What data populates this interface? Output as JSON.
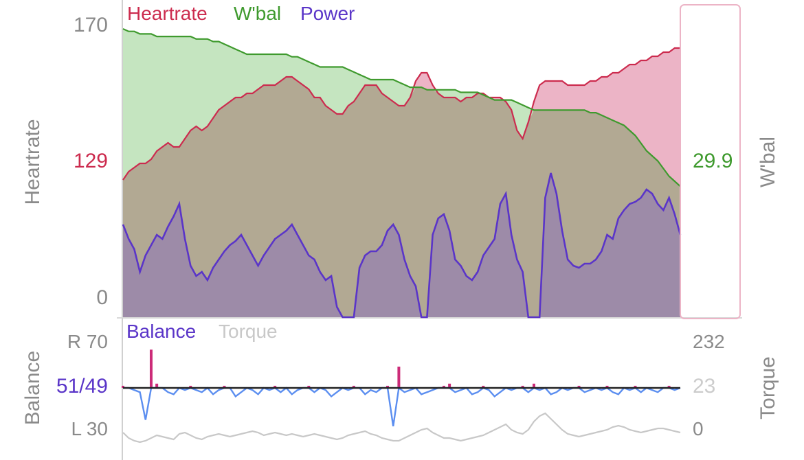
{
  "colors": {
    "heartrate": "#cc2b4e",
    "wbal": "#3f9a2e",
    "power": "#5a35c8",
    "balance_right": "#cc2b78",
    "balance_left": "#5b8ef0",
    "torque": "#c8c8c8",
    "axis_text": "#8a8a8a",
    "wbal_fill": "#c2e4bd",
    "hr_fill": "#ecb4c6",
    "overlap_fill": "#b2a993",
    "power_fill": "#9d8ba8"
  },
  "chart_data": [
    {
      "type": "area",
      "legend": [
        "Heartrate",
        "W'bal",
        "Power"
      ],
      "left_axis": {
        "label": "Heartrate",
        "ticks": [
          "170",
          "129",
          "0"
        ],
        "highlight": "129"
      },
      "right_axis": {
        "label": "W'bal",
        "value": "29.9"
      },
      "x_samples": 100,
      "series": [
        {
          "name": "Heartrate",
          "values": [
            140,
            142,
            143,
            144,
            144,
            145,
            147,
            148,
            149,
            148,
            148,
            150,
            152,
            153,
            152,
            153,
            155,
            157,
            158,
            159,
            160,
            160,
            161,
            161,
            162,
            163,
            163,
            163,
            164,
            165,
            165,
            164,
            163,
            162,
            160,
            160,
            158,
            157,
            156,
            156,
            158,
            159,
            161,
            163,
            163,
            163,
            161,
            160,
            159,
            158,
            158,
            160,
            164,
            166,
            166,
            163,
            161,
            160,
            160,
            160,
            159,
            160,
            160,
            161,
            161,
            160,
            160,
            160,
            159,
            157,
            152,
            150,
            154,
            159,
            163,
            164,
            164,
            164,
            164,
            163,
            163,
            163,
            163,
            164,
            164,
            165,
            165,
            166,
            166,
            167,
            168,
            168,
            169,
            169,
            170,
            170,
            171,
            171,
            172,
            172
          ]
        },
        {
          "name": "W'bal",
          "values": [
            100,
            99,
            99,
            98,
            98,
            98,
            97,
            97,
            97,
            97,
            97,
            97,
            97,
            96,
            96,
            96,
            95,
            95,
            94,
            93,
            92,
            91,
            90,
            90,
            90,
            90,
            90,
            90,
            90,
            90,
            89,
            89,
            88,
            87,
            86,
            85,
            85,
            85,
            85,
            85,
            84,
            83,
            82,
            81,
            80,
            80,
            80,
            80,
            80,
            79,
            78,
            77,
            77,
            77,
            76,
            76,
            76,
            76,
            76,
            76,
            75,
            75,
            75,
            75,
            74,
            73,
            72,
            72,
            72,
            72,
            71,
            70,
            69,
            68,
            68,
            68,
            68,
            68,
            68,
            68,
            68,
            68,
            68,
            67,
            67,
            66,
            65,
            64,
            63,
            62,
            60,
            58,
            55,
            52,
            50,
            48,
            45,
            42,
            40,
            38
          ]
        },
        {
          "name": "Power",
          "values": [
            45,
            38,
            33,
            22,
            30,
            35,
            40,
            38,
            44,
            49,
            55,
            38,
            25,
            20,
            22,
            18,
            24,
            28,
            32,
            35,
            37,
            40,
            35,
            30,
            25,
            30,
            34,
            38,
            40,
            42,
            45,
            40,
            35,
            30,
            28,
            22,
            18,
            20,
            5,
            0,
            0,
            0,
            24,
            30,
            32,
            32,
            35,
            42,
            45,
            40,
            28,
            20,
            15,
            0,
            0,
            40,
            48,
            50,
            42,
            28,
            25,
            20,
            18,
            22,
            30,
            34,
            38,
            55,
            60,
            40,
            28,
            22,
            0,
            0,
            0,
            58,
            70,
            60,
            42,
            28,
            25,
            24,
            26,
            26,
            28,
            32,
            40,
            38,
            48,
            52,
            55,
            56,
            58,
            62,
            60,
            55,
            52,
            58,
            50,
            40
          ]
        }
      ]
    },
    {
      "type": "line",
      "legend": [
        "Balance",
        "Torque"
      ],
      "left_axis": {
        "label": "Balance",
        "ticks": [
          "R 70",
          "51/49",
          "L 30"
        ],
        "highlight": "51/49"
      },
      "right_axis": {
        "label": "Torque",
        "ticks": [
          "232",
          "23",
          "0"
        ]
      },
      "x_samples": 100,
      "series": [
        {
          "name": "Balance",
          "values": [
            51,
            50,
            49,
            48,
            35,
            68,
            52,
            50,
            48,
            47,
            50,
            49,
            51,
            49,
            48,
            50,
            47,
            49,
            51,
            50,
            46,
            48,
            50,
            49,
            47,
            50,
            49,
            51,
            48,
            50,
            47,
            49,
            50,
            51,
            48,
            50,
            49,
            46,
            48,
            50,
            49,
            51,
            50,
            47,
            49,
            48,
            50,
            51,
            32,
            60,
            48,
            49,
            50,
            47,
            48,
            49,
            50,
            51,
            52,
            48,
            49,
            50,
            47,
            48,
            51,
            49,
            46,
            48,
            50,
            49,
            50,
            51,
            48,
            52,
            49,
            50,
            47,
            48,
            50,
            49,
            50,
            51,
            48,
            49,
            50,
            49,
            51,
            48,
            47,
            50,
            49,
            51,
            48,
            50,
            49,
            48,
            50,
            51,
            49,
            50
          ]
        },
        {
          "name": "Torque",
          "values": [
            10,
            6,
            4,
            3,
            4,
            6,
            8,
            7,
            6,
            5,
            9,
            10,
            8,
            6,
            5,
            7,
            8,
            9,
            8,
            7,
            8,
            9,
            10,
            11,
            10,
            8,
            9,
            10,
            9,
            8,
            9,
            8,
            7,
            8,
            9,
            8,
            7,
            6,
            5,
            6,
            8,
            9,
            10,
            11,
            9,
            8,
            6,
            5,
            4,
            4,
            6,
            8,
            10,
            12,
            13,
            10,
            8,
            6,
            6,
            5,
            4,
            5,
            6,
            7,
            8,
            10,
            12,
            14,
            16,
            12,
            10,
            9,
            12,
            18,
            22,
            24,
            20,
            16,
            12,
            9,
            8,
            7,
            8,
            9,
            10,
            11,
            12,
            14,
            15,
            14,
            12,
            11,
            10,
            11,
            12,
            13,
            13,
            12,
            11,
            10
          ]
        }
      ]
    }
  ]
}
